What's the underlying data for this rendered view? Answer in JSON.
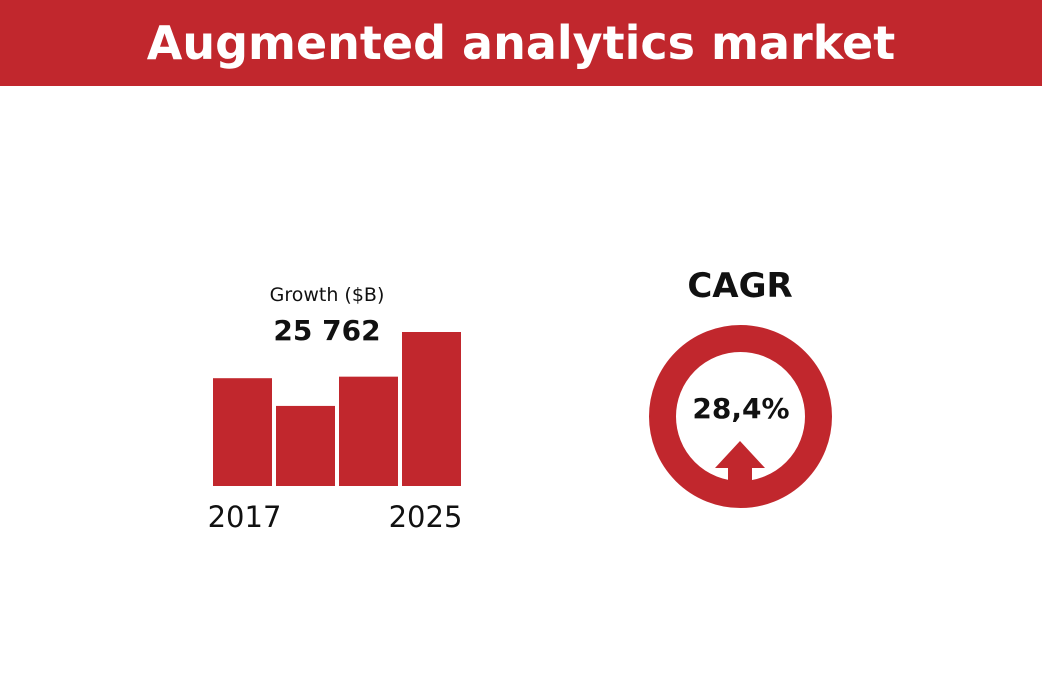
{
  "header": {
    "title": "Augmented analytics market"
  },
  "growth": {
    "label": "Growth ($B)",
    "value": "25 762"
  },
  "cagr": {
    "label": "CAGR",
    "value": "28,4%"
  },
  "colors": {
    "accent": "#c1272d",
    "text": "#111111",
    "background": "#ffffff"
  },
  "chart_data": {
    "type": "bar",
    "categories": [
      "2017",
      "",
      "",
      "2025"
    ],
    "tick_labels": [
      "2017",
      "2025"
    ],
    "values": [
      70,
      52,
      71,
      100
    ],
    "grid": false,
    "legend": "none"
  }
}
